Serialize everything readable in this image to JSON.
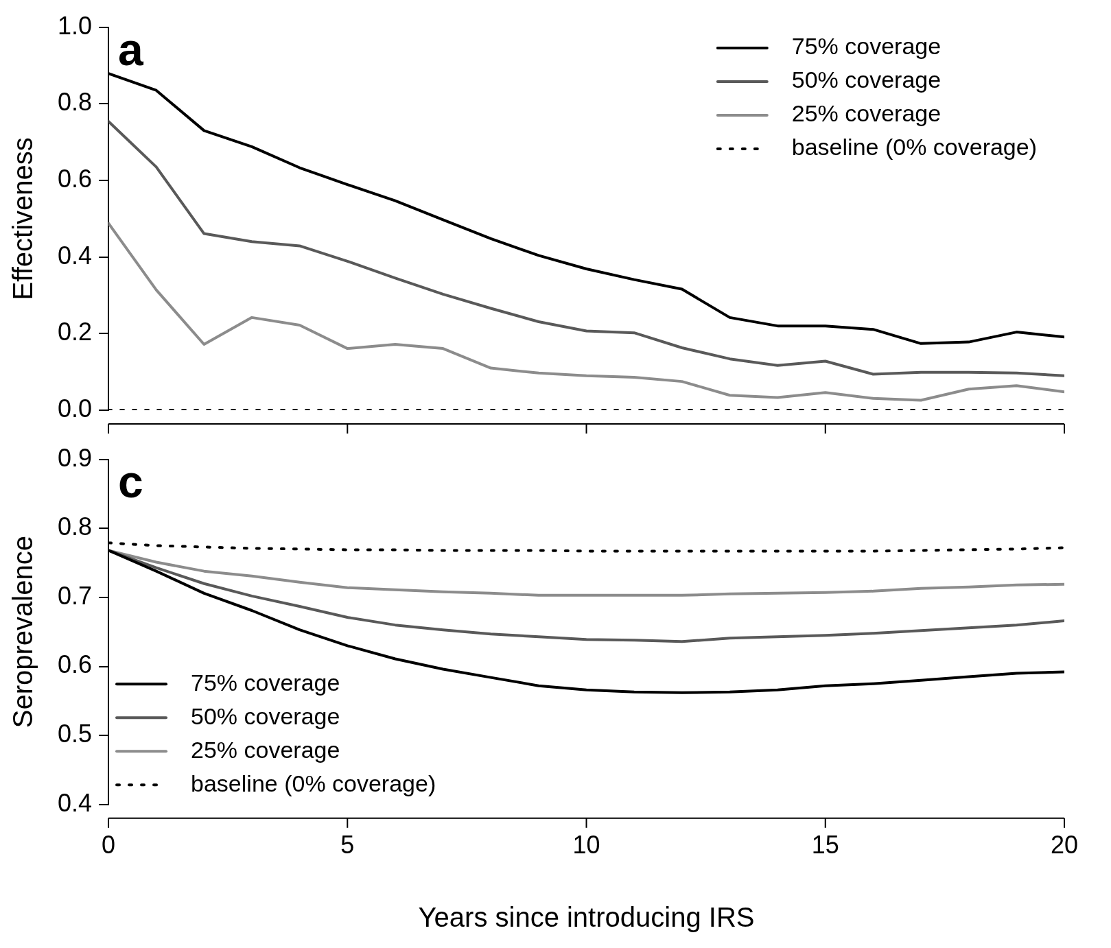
{
  "chart_data": [
    {
      "type": "line",
      "title": "a",
      "ylabel": "Effectiveness",
      "x": [
        0,
        1,
        2,
        3,
        4,
        5,
        6,
        7,
        8,
        9,
        10,
        11,
        12,
        13,
        14,
        15,
        16,
        17,
        18,
        19,
        20
      ],
      "xlim": [
        0,
        20
      ],
      "xticks": [
        0,
        5,
        10,
        15,
        20
      ],
      "ylim": [
        0,
        1
      ],
      "yticks": [
        {
          "value": 0,
          "label": "0.0"
        },
        0.2,
        0.4,
        0.6,
        0.8,
        {
          "value": 1,
          "label": "1.0"
        }
      ],
      "tick_labels": "y",
      "grid": false,
      "legend": "top right",
      "series": [
        {
          "name": "75% coverage",
          "color": "#000000",
          "values": [
            0.879,
            0.835,
            0.73,
            0.688,
            0.633,
            0.589,
            0.547,
            0.497,
            0.448,
            0.404,
            0.369,
            0.341,
            0.316,
            0.242,
            0.22,
            0.22,
            0.211,
            0.174,
            0.178,
            0.204,
            0.191
          ]
        },
        {
          "name": "50% coverage",
          "color": "#595959",
          "values": [
            0.754,
            0.635,
            0.461,
            0.44,
            0.429,
            0.389,
            0.345,
            0.303,
            0.266,
            0.231,
            0.207,
            0.202,
            0.163,
            0.134,
            0.117,
            0.128,
            0.094,
            0.099,
            0.099,
            0.097,
            0.09
          ]
        },
        {
          "name": "25% coverage",
          "color": "#8c8c8c",
          "values": [
            0.488,
            0.314,
            0.172,
            0.242,
            0.222,
            0.161,
            0.172,
            0.161,
            0.11,
            0.097,
            0.09,
            0.086,
            0.075,
            0.039,
            0.033,
            0.046,
            0.031,
            0.026,
            0.055,
            0.064,
            0.048
          ]
        },
        {
          "name": "baseline (0% coverage)",
          "color": "#000000",
          "line_style": "dotted",
          "values": [
            0,
            0,
            0,
            0,
            0,
            0,
            0,
            0,
            0,
            0,
            0,
            0,
            0,
            0,
            0,
            0,
            0,
            0,
            0,
            0,
            0
          ]
        }
      ]
    },
    {
      "type": "line",
      "title": "c",
      "xlabel": "Years since introducing IRS",
      "ylabel": "Seroprevalence",
      "x": [
        0,
        1,
        2,
        3,
        4,
        5,
        6,
        7,
        8,
        9,
        10,
        11,
        12,
        13,
        14,
        15,
        16,
        17,
        18,
        19,
        20
      ],
      "xlim": [
        0,
        20
      ],
      "xticks": [
        0,
        5,
        10,
        15,
        20
      ],
      "ylim": [
        0.4,
        0.9
      ],
      "yticks": [
        0.4,
        0.5,
        0.6,
        0.7,
        0.8,
        0.9
      ],
      "grid": false,
      "legend": "bottom left",
      "series": [
        {
          "name": "75% coverage",
          "color": "#000000",
          "values": [
            0.768,
            0.738,
            0.706,
            0.681,
            0.653,
            0.63,
            0.611,
            0.596,
            0.584,
            0.572,
            0.566,
            0.563,
            0.562,
            0.563,
            0.566,
            0.572,
            0.575,
            0.58,
            0.585,
            0.59,
            0.592
          ]
        },
        {
          "name": "50% coverage",
          "color": "#595959",
          "values": [
            0.768,
            0.743,
            0.72,
            0.702,
            0.687,
            0.671,
            0.66,
            0.653,
            0.647,
            0.643,
            0.639,
            0.638,
            0.636,
            0.641,
            0.643,
            0.645,
            0.648,
            0.652,
            0.656,
            0.66,
            0.666
          ]
        },
        {
          "name": "25% coverage",
          "color": "#8c8c8c",
          "values": [
            0.768,
            0.751,
            0.738,
            0.731,
            0.722,
            0.714,
            0.711,
            0.708,
            0.706,
            0.703,
            0.703,
            0.703,
            0.703,
            0.705,
            0.706,
            0.707,
            0.709,
            0.713,
            0.715,
            0.718,
            0.719
          ]
        },
        {
          "name": "baseline (0% coverage)",
          "color": "#000000",
          "line_style": "dotted",
          "values": [
            0.779,
            0.775,
            0.773,
            0.771,
            0.77,
            0.769,
            0.769,
            0.768,
            0.768,
            0.768,
            0.767,
            0.767,
            0.767,
            0.767,
            0.767,
            0.767,
            0.767,
            0.768,
            0.769,
            0.77,
            0.772
          ]
        }
      ]
    }
  ]
}
